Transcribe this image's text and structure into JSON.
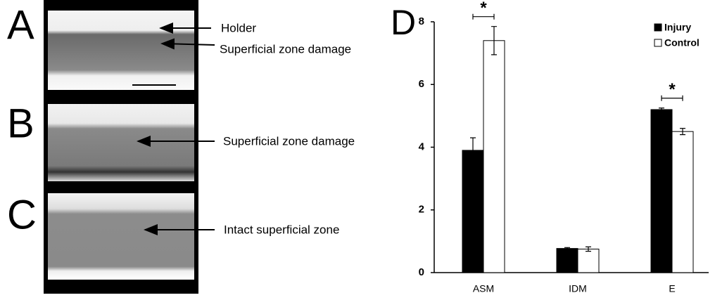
{
  "panels": [
    {
      "label": "A",
      "annotations": [
        "Holder",
        "Superficial zone damage"
      ]
    },
    {
      "label": "B",
      "annotations": [
        "Superficial zone damage"
      ]
    },
    {
      "label": "C",
      "annotations": [
        "Intact superficial zone"
      ]
    }
  ],
  "chart_data": {
    "type": "bar",
    "panel": "D",
    "categories": [
      "ASM",
      "IDM",
      "E"
    ],
    "series": [
      {
        "name": "Injury",
        "color": "#000000",
        "values": [
          3.9,
          0.77,
          5.2
        ],
        "errors": [
          0.4,
          0.03,
          0.05
        ]
      },
      {
        "name": "Control",
        "color": "#ffffff",
        "values": [
          7.4,
          0.75,
          4.5
        ],
        "errors": [
          0.45,
          0.07,
          0.1
        ]
      }
    ],
    "ylim": [
      0,
      8
    ],
    "yticks": [
      0,
      2,
      4,
      6,
      8
    ],
    "legend": "upper right",
    "annotations": [
      "*",
      "*"
    ]
  }
}
